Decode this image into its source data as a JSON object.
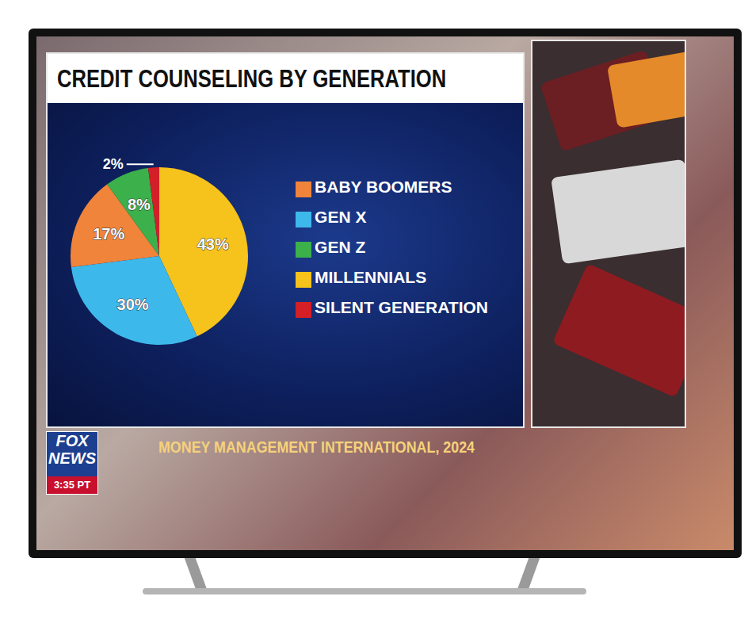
{
  "chart_data": {
    "type": "pie",
    "title": "CREDIT COUNSELING BY GENERATION",
    "categories": [
      "MILLENNIALS",
      "GEN X",
      "BABY BOOMERS",
      "GEN Z",
      "SILENT GENERATION"
    ],
    "values": [
      43,
      30,
      17,
      8,
      2
    ],
    "value_labels": [
      "43%",
      "30%",
      "17%",
      "8%",
      "2%"
    ],
    "colors": [
      "#f6c21c",
      "#3db8ea",
      "#f0843a",
      "#3cb04a",
      "#d41f26"
    ],
    "data_labels": true,
    "legend": "right"
  },
  "source": "MONEY MANAGEMENT INTERNATIONAL, 2024",
  "logo": [
    "FOX",
    "NEWS"
  ],
  "time": "3:35 PT"
}
